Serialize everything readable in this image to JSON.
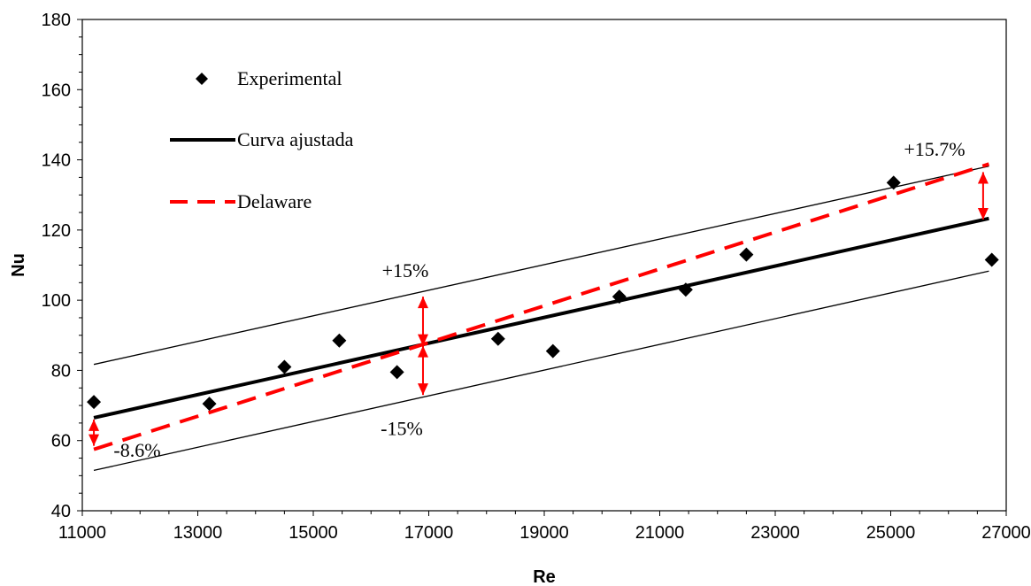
{
  "chart_data": {
    "type": "scatter",
    "xlabel": "Re",
    "ylabel": "Nu",
    "xlim": [
      11000,
      27000
    ],
    "ylim": [
      40,
      180
    ],
    "x_ticks": [
      11000,
      13000,
      15000,
      17000,
      19000,
      21000,
      23000,
      25000,
      27000
    ],
    "y_ticks": [
      40,
      60,
      80,
      100,
      120,
      140,
      160,
      180
    ],
    "grid": false,
    "legend_position": "top-left",
    "series": [
      {
        "name": "Experimental",
        "kind": "markers",
        "marker": "diamond",
        "color": "#000000",
        "x": [
          11200,
          13200,
          14500,
          15450,
          16450,
          18200,
          19150,
          20300,
          21450,
          22500,
          25050,
          26750
        ],
        "y": [
          71,
          70.5,
          81,
          88.5,
          79.5,
          89,
          85.5,
          101,
          103,
          113,
          133.5,
          111.5
        ]
      },
      {
        "name": "Curva ajustada",
        "kind": "line",
        "style": "solid",
        "color": "#000000",
        "x": [
          11200,
          26700
        ],
        "y": [
          66.5,
          123.3
        ]
      },
      {
        "name": "Delaware",
        "kind": "line",
        "style": "dashed",
        "color": "#ff0000",
        "x": [
          11200,
          26700
        ],
        "y": [
          57.5,
          138.8
        ]
      },
      {
        "name": "",
        "kind": "line",
        "style": "thin",
        "color": "#000000",
        "x": [
          11200,
          26700
        ],
        "y": [
          81.7,
          138.2
        ]
      },
      {
        "name": "",
        "kind": "line",
        "style": "thin",
        "color": "#000000",
        "x": [
          11200,
          26700
        ],
        "y": [
          51.5,
          108.3
        ]
      }
    ],
    "annotations": [
      {
        "text": "+15%",
        "x": 16900,
        "y": 100.5
      },
      {
        "text": "-15%",
        "x": 16900,
        "y": 78.5
      },
      {
        "text": "+15.7%",
        "x": 26600,
        "y": 137.8
      },
      {
        "text": "-8.6%",
        "x": 11200,
        "y": 64.5
      }
    ],
    "arrows": [
      {
        "x": 16900,
        "y1": 87.0,
        "y2": 101.0
      },
      {
        "x": 16900,
        "y1": 87.0,
        "y2": 73.0
      },
      {
        "x": 26600,
        "y1": 136.5,
        "y2": 123.0
      },
      {
        "x": 11200,
        "y1": 58.5,
        "y2": 66.0
      }
    ]
  }
}
